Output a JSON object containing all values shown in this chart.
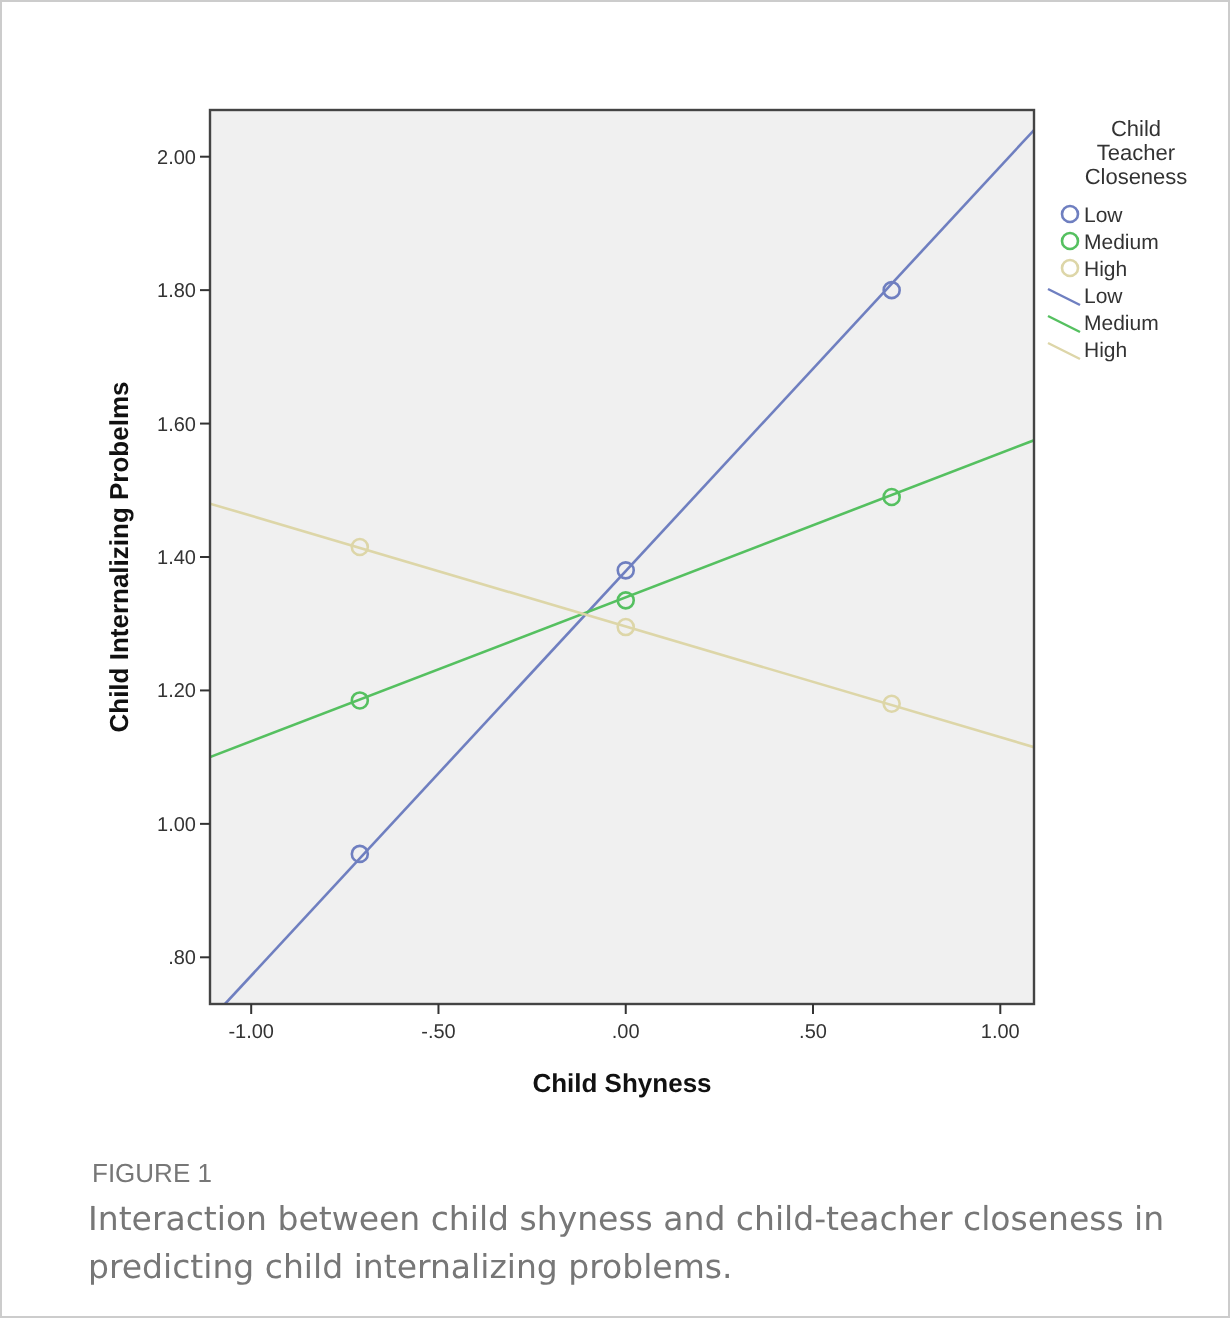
{
  "chart_data": {
    "type": "scatter",
    "xlabel": "Child Shyness",
    "ylabel": "Child Internalizing Probelms",
    "legend_title": "Child Teacher Closeness",
    "legend": "right",
    "grid": false,
    "xlim": [
      -1.11,
      1.09
    ],
    "xticks": [
      {
        "value": -1,
        "label": "-1.00"
      },
      {
        "value": -0.5,
        "label": "-.50"
      },
      {
        "value": 0,
        "label": ".00"
      },
      {
        "value": 0.5,
        "label": ".50"
      },
      {
        "value": 1,
        "label": "1.00"
      }
    ],
    "ylim": [
      0.73,
      2.07
    ],
    "yticks": [
      {
        "value": 0.8,
        "label": ".80"
      },
      {
        "value": 1,
        "label": "1.00"
      },
      {
        "value": 1.2,
        "label": "1.20"
      },
      {
        "value": 1.4,
        "label": "1.40"
      },
      {
        "value": 1.6,
        "label": "1.60"
      },
      {
        "value": 1.8,
        "label": "1.80"
      },
      {
        "value": 2,
        "label": "2.00"
      }
    ],
    "series": [
      {
        "name": "Low",
        "marker": "circle",
        "color": "#6f7fc0",
        "x": [
          -0.71,
          0,
          0.71
        ],
        "values": [
          0.955,
          1.38,
          1.8
        ]
      },
      {
        "name": "Medium",
        "marker": "circle",
        "color": "#55c060",
        "x": [
          -0.71,
          0,
          0.71
        ],
        "values": [
          1.185,
          1.335,
          1.49
        ]
      },
      {
        "name": "High",
        "marker": "circle",
        "color": "#ddd6a8",
        "x": [
          -0.71,
          0,
          0.71
        ],
        "values": [
          1.415,
          1.295,
          1.18
        ]
      },
      {
        "name": "Low",
        "type": "line",
        "marker": "none",
        "color": "#6f7fc0",
        "x": [
          -1.07,
          1.09
        ],
        "values": [
          0.73,
          2.04
        ]
      },
      {
        "name": "Medium",
        "type": "line",
        "marker": "none",
        "color": "#55c060",
        "x": [
          -1.11,
          1.09
        ],
        "values": [
          1.1,
          1.575
        ]
      },
      {
        "name": "High",
        "type": "line",
        "marker": "none",
        "color": "#ddd6a8",
        "x": [
          -1.11,
          1.09
        ],
        "values": [
          1.48,
          1.115
        ]
      }
    ],
    "annotations": [
      "FIGURE 1",
      "Interaction between child shyness and child-teacher closeness in predicting child internalizing problems."
    ]
  }
}
